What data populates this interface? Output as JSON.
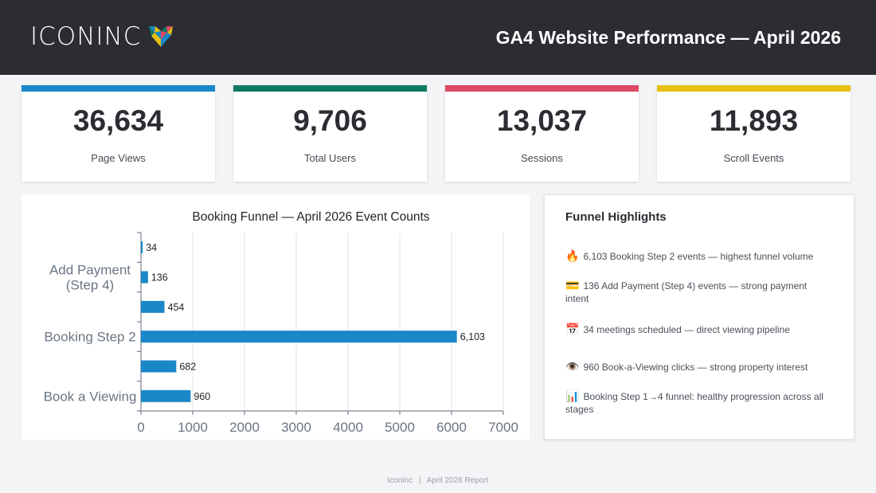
{
  "header": {
    "logo_text": "ICONINC",
    "report_title": "GA4 Website Performance — April 2026"
  },
  "kpis": [
    {
      "value": "36,634",
      "label": "Page Views",
      "color": "#1a87c9"
    },
    {
      "value": "9,706",
      "label": "Total Users",
      "color": "#0e7a5f"
    },
    {
      "value": "13,037",
      "label": "Sessions",
      "color": "#e04866"
    },
    {
      "value": "11,893",
      "label": "Scroll Events",
      "color": "#e6c014"
    }
  ],
  "chart_data": {
    "type": "bar",
    "orientation": "horizontal",
    "title": "Booking Funnel — April 2026 Event Counts",
    "categories": [
      "",
      "Add Payment (Step 4)",
      "",
      "Booking Step 2",
      "",
      "Book a Viewing"
    ],
    "values": [
      34,
      136,
      454,
      6103,
      682,
      960
    ],
    "data_labels": [
      "34",
      "136",
      "454",
      "6,103",
      "682",
      "960"
    ],
    "xlim": [
      0,
      7000
    ],
    "x_ticks": [
      0,
      1000,
      2000,
      3000,
      4000,
      5000,
      6000,
      7000
    ],
    "grid": true,
    "bar_color": "#1a87c9"
  },
  "highlights": {
    "title": "Funnel Highlights",
    "items": [
      {
        "icon": "🔥",
        "icon_name": "fire-icon",
        "text": "6,103 Booking Step 2 events — highest funnel volume"
      },
      {
        "icon": "💳",
        "icon_name": "credit-card-icon",
        "text": "136 Add Payment (Step 4) events — strong payment intent"
      },
      {
        "icon": "📅",
        "icon_name": "calendar-icon",
        "text": "34 meetings scheduled — direct viewing pipeline"
      },
      {
        "icon": "👁️",
        "icon_name": "eye-icon",
        "text": "960 Book-a-Viewing clicks — strong property interest"
      },
      {
        "icon": "📊",
        "icon_name": "bar-chart-icon",
        "text": "Booking Step 1→4 funnel: healthy progression across all stages"
      }
    ]
  },
  "footer": {
    "brand": "Iconinc",
    "separator": "|",
    "report": "April 2026 Report"
  }
}
